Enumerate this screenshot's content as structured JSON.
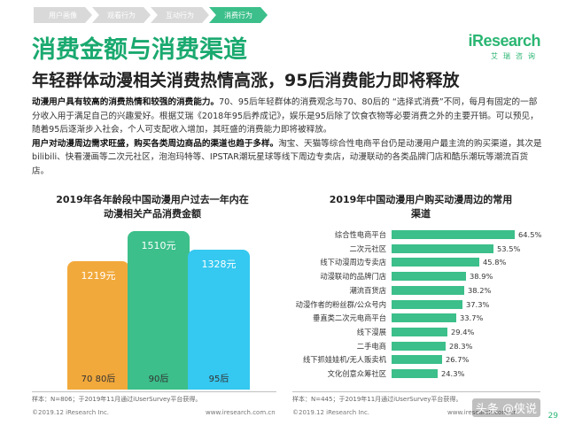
{
  "tabs": [
    {
      "label": "用户画像",
      "active": false
    },
    {
      "label": "观看行为",
      "active": false
    },
    {
      "label": "互动行为",
      "active": false
    },
    {
      "label": "消费行为",
      "active": true
    }
  ],
  "logo": {
    "brand": "iResearch",
    "sub": "艾瑞咨询"
  },
  "title": "消费金额与消费渠道",
  "subtitle": "年轻群体动漫相关消费热情高涨，95后消费能力即将释放",
  "paragraph": {
    "bold1": "动漫用户具有较高的消费热情和较强的消费能力。",
    "text1": "70、95后年轻群体的消费观念与70、80后的 “选择式消费”不同，每月有固定的一部分收入用于满足自己的兴趣爱好。根据艾瑞《2018年95后养成记》，娱乐是95后除了饮食衣物等必要消费之外的主要开销。可以预见，随着95后逐渐步入社会，个人可支配收入增加，其旺盛的消费能力即将被释放。",
    "bold2": "用户对动漫周边需求旺盛，购买各类周边商品的渠道也趋于多样。",
    "text2": "淘宝、天猫等综合性电商平台仍是动漫用户最主流的购买渠道，其次是bilibili、快看漫画等二次元社区，泡泡玛特等、IPSTAR潮玩星球等线下周边专卖店，动漫联动的各类品牌门店和酷乐潮玩等潮流百货店。"
  },
  "chart_data": [
    {
      "type": "bar",
      "title": "2019年各年龄段中国动漫用户过去一年内在动漫相关产品消费金额",
      "categories": [
        "70 80后",
        "90后",
        "95后"
      ],
      "values": [
        1219,
        1510,
        1328
      ],
      "value_labels": [
        "1219元",
        "1510元",
        "1328元"
      ],
      "colors": [
        "#f2a93b",
        "#3cbf8a",
        "#35c8f0"
      ],
      "ylim": [
        0,
        1600
      ]
    },
    {
      "type": "bar",
      "orientation": "horizontal",
      "title": "2019年中国动漫用户购买动漫周边的常用渠道",
      "categories": [
        "综合性电商平台",
        "二次元社区",
        "线下动漫周边专卖店",
        "动漫联动的品牌门店",
        "潮流百货店",
        "动漫作者的粉丝群/公众号内",
        "垂直类二次元电商平台",
        "线下漫展",
        "二手电商",
        "线下抓娃娃机/无人贩卖机",
        "文化创意众筹社区"
      ],
      "values": [
        64.5,
        53.5,
        45.8,
        38.9,
        38.2,
        37.3,
        33.7,
        29.4,
        28.3,
        26.7,
        24.3
      ],
      "value_labels": [
        "64.5%",
        "53.5%",
        "45.8%",
        "38.9%",
        "38.2%",
        "37.3%",
        "33.7%",
        "29.4%",
        "28.3%",
        "26.7%",
        "24.3%"
      ],
      "xlim": [
        0,
        70
      ],
      "color": "#3cbf8a"
    }
  ],
  "notes": {
    "left": "样本：N=806；于2019年11月通过iUserSurvey平台获得。",
    "right": "样本：N=445；于2019年11月通过iUserSurvey平台获得。"
  },
  "footer": {
    "left_copy": "©2019.12 iResearch Inc.",
    "left_url": "www.iresearch.com.cn",
    "right_copy": "©2019.12 iResearch Inc.",
    "right_url": "www.iresearch.com.cn",
    "watermark": "头条 @侠说",
    "page": "29"
  }
}
